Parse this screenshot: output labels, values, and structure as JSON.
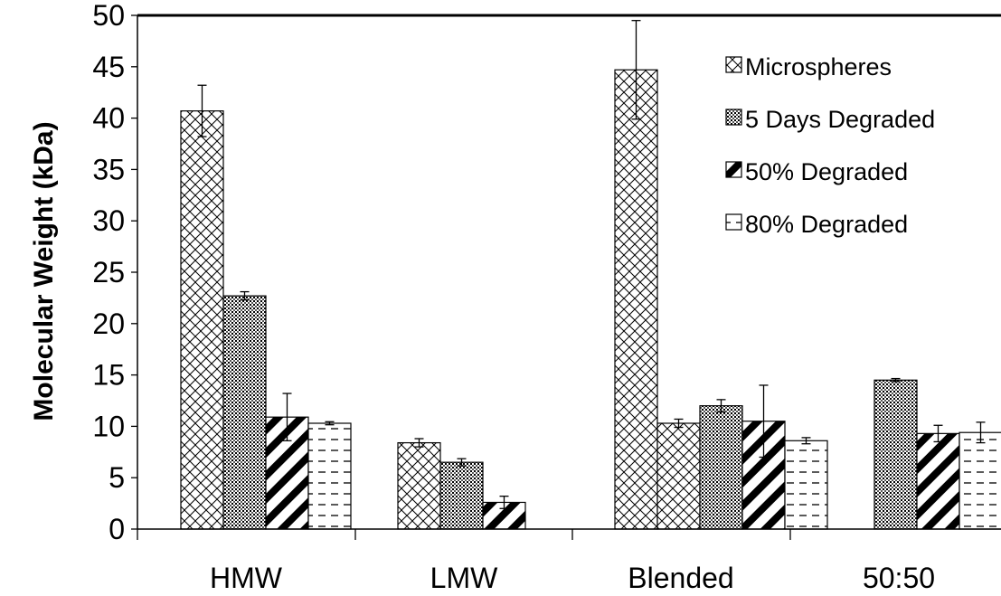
{
  "chart_data": {
    "type": "bar",
    "ylabel": "Molecular Weight (kDa)",
    "xlabel": "",
    "ylim": [
      0,
      50
    ],
    "yticks": [
      0,
      5,
      10,
      15,
      20,
      25,
      30,
      35,
      40,
      45,
      50
    ],
    "categories": [
      "HMW",
      "LMW",
      "Blended",
      "50:50"
    ],
    "series": [
      {
        "name": "Microspheres",
        "pattern": "crosshatch",
        "values": [
          40.7,
          8.4,
          44.7,
          null
        ],
        "errors": [
          2.5,
          0.4,
          4.8,
          null
        ]
      },
      {
        "name": "5 Days Degraded",
        "pattern": "dense-grid",
        "values": [
          22.7,
          6.5,
          10.3,
          14.5
        ],
        "errors": [
          0.4,
          0.35,
          0.4,
          0.15
        ]
      },
      {
        "name": "50% Degraded",
        "pattern": "diagonal-stripes",
        "values": [
          10.9,
          2.6,
          12.0,
          9.3
        ],
        "errors": [
          2.3,
          0.6,
          0.6,
          0.8
        ]
      },
      {
        "name": "80% Degraded",
        "pattern": "horizontal-dashes",
        "values": [
          10.3,
          null,
          10.5,
          9.4
        ],
        "errors": [
          0.15,
          null,
          3.5,
          1.0
        ]
      }
    ],
    "extra_bars": [
      {
        "category_index": 2,
        "series_index": 3,
        "value": 8.6,
        "error": 0.3
      }
    ],
    "legend_position": "top-right",
    "grid": false
  }
}
